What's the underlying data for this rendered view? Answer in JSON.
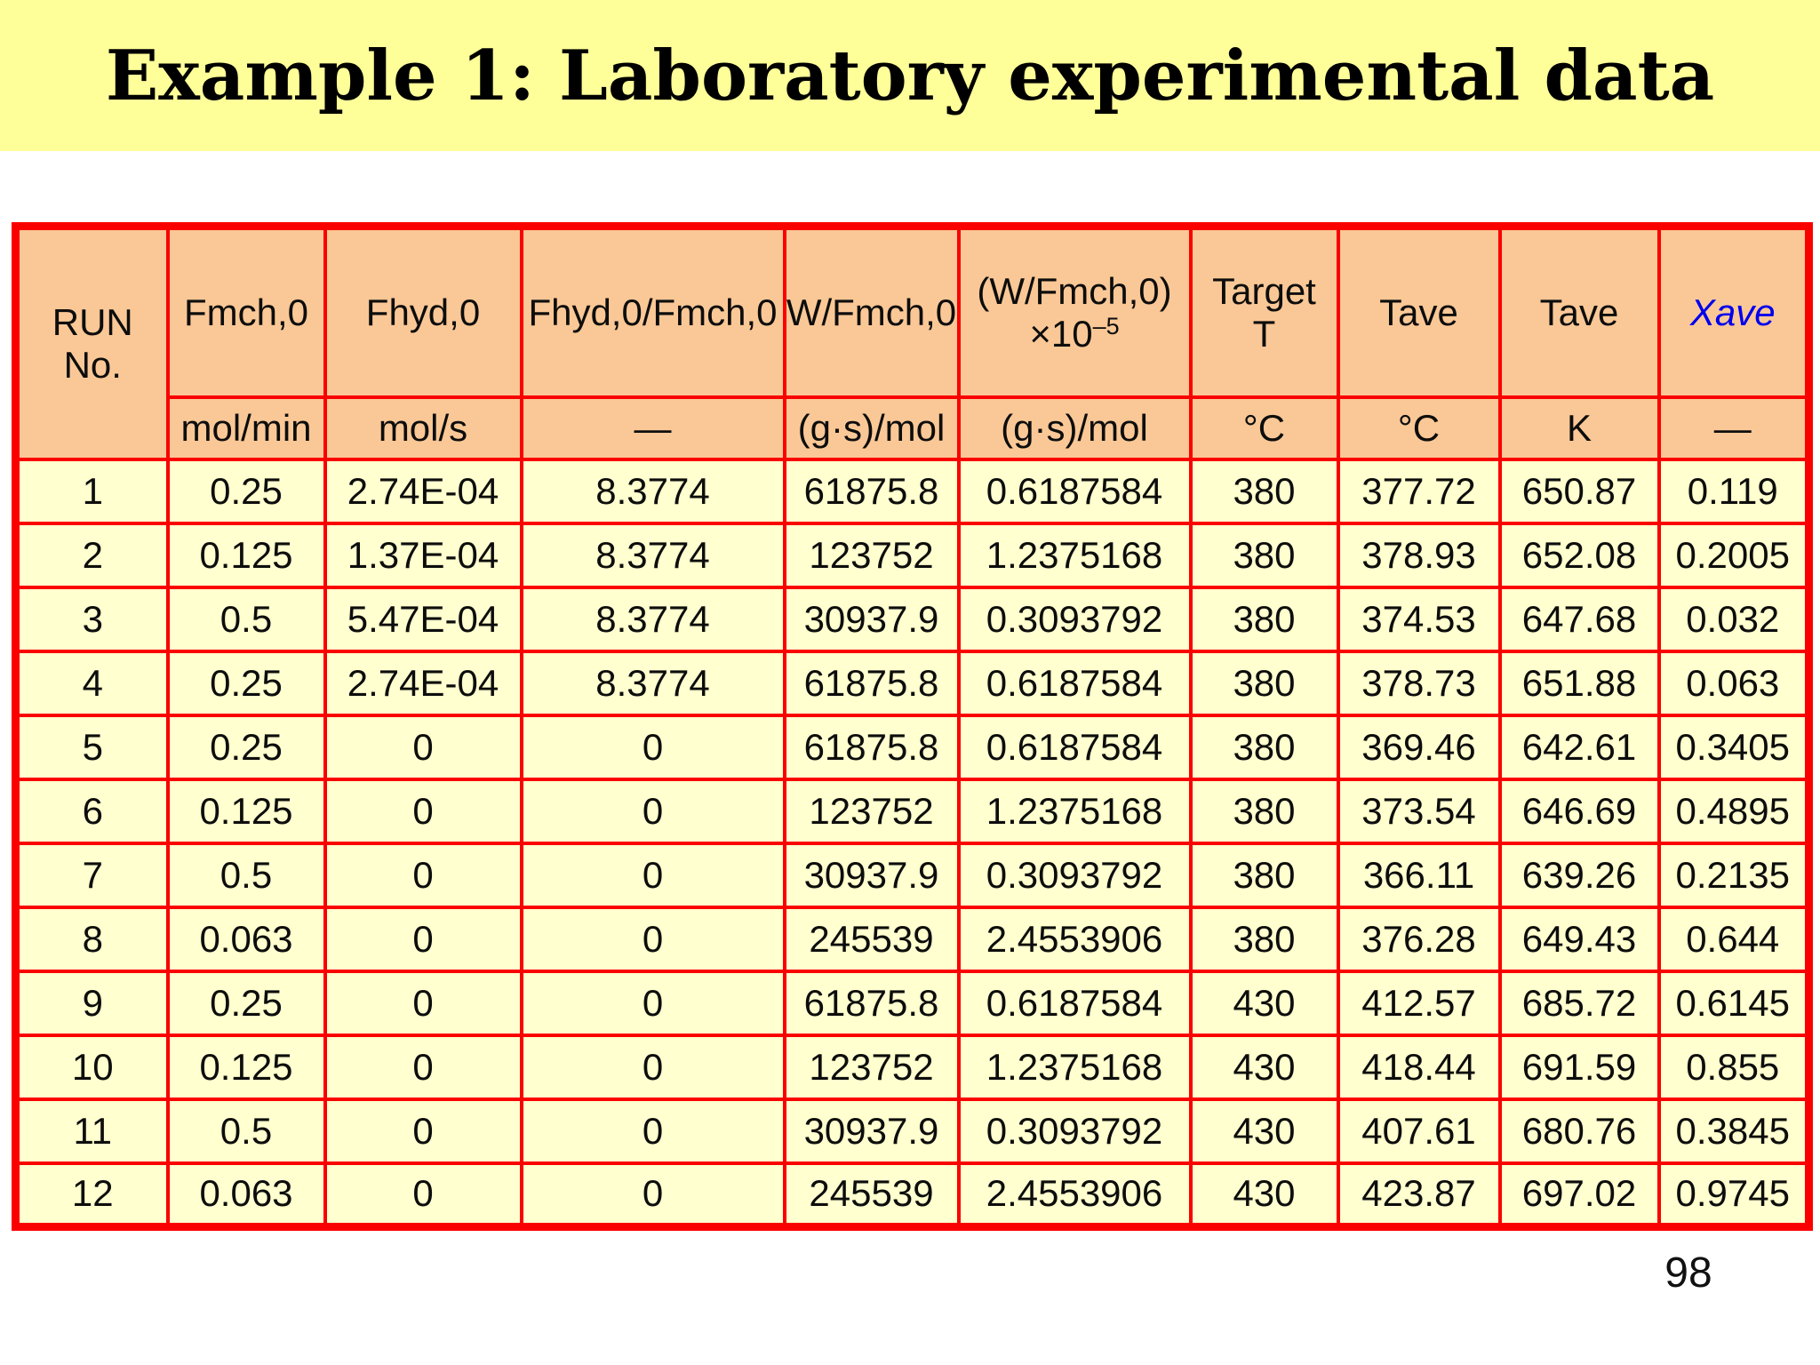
{
  "slide": {
    "title": "Example 1: Laboratory experimental data",
    "page_number": "98"
  },
  "colors": {
    "border_red": "#fa0000",
    "header_fill": "#fac896",
    "row_fill": "#ffffcf",
    "title_band_fill": "#ffff99",
    "xave_blue": "#0000ee"
  },
  "table": {
    "header": {
      "run_no": "RUN\nNo.",
      "fmch0": "Fmch,0",
      "fhyd0": "Fhyd,0",
      "fhyd0_fmch0": "Fhyd,0/Fmch,0",
      "w_fmch0": "W/Fmch,0",
      "w_fmch0_scaled_line1": "(W/Fmch,0)",
      "w_fmch0_scaled_base": "×10",
      "w_fmch0_scaled_exp": "–5",
      "target_t": "Target\nT",
      "tave_c": "Tave",
      "tave_k": "Tave",
      "xave": "Xave"
    },
    "units": [
      "mol/min",
      "mol/s",
      "—",
      "(g·s)/mol",
      "(g·s)/mol",
      "°C",
      "°C",
      "K",
      "—"
    ],
    "rows": [
      [
        "1",
        "0.25",
        "2.74E-04",
        "8.3774",
        "61875.8",
        "0.6187584",
        "380",
        "377.72",
        "650.87",
        "0.119"
      ],
      [
        "2",
        "0.125",
        "1.37E-04",
        "8.3774",
        "123752",
        "1.2375168",
        "380",
        "378.93",
        "652.08",
        "0.2005"
      ],
      [
        "3",
        "0.5",
        "5.47E-04",
        "8.3774",
        "30937.9",
        "0.3093792",
        "380",
        "374.53",
        "647.68",
        "0.032"
      ],
      [
        "4",
        "0.25",
        "2.74E-04",
        "8.3774",
        "61875.8",
        "0.6187584",
        "380",
        "378.73",
        "651.88",
        "0.063"
      ],
      [
        "5",
        "0.25",
        "0",
        "0",
        "61875.8",
        "0.6187584",
        "380",
        "369.46",
        "642.61",
        "0.3405"
      ],
      [
        "6",
        "0.125",
        "0",
        "0",
        "123752",
        "1.2375168",
        "380",
        "373.54",
        "646.69",
        "0.4895"
      ],
      [
        "7",
        "0.5",
        "0",
        "0",
        "30937.9",
        "0.3093792",
        "380",
        "366.11",
        "639.26",
        "0.2135"
      ],
      [
        "8",
        "0.063",
        "0",
        "0",
        "245539",
        "2.4553906",
        "380",
        "376.28",
        "649.43",
        "0.644"
      ],
      [
        "9",
        "0.25",
        "0",
        "0",
        "61875.8",
        "0.6187584",
        "430",
        "412.57",
        "685.72",
        "0.6145"
      ],
      [
        "10",
        "0.125",
        "0",
        "0",
        "123752",
        "1.2375168",
        "430",
        "418.44",
        "691.59",
        "0.855"
      ],
      [
        "11",
        "0.5",
        "0",
        "0",
        "30937.9",
        "0.3093792",
        "430",
        "407.61",
        "680.76",
        "0.3845"
      ],
      [
        "12",
        "0.063",
        "0",
        "0",
        "245539",
        "2.4553906",
        "430",
        "423.87",
        "697.02",
        "0.9745"
      ]
    ]
  }
}
